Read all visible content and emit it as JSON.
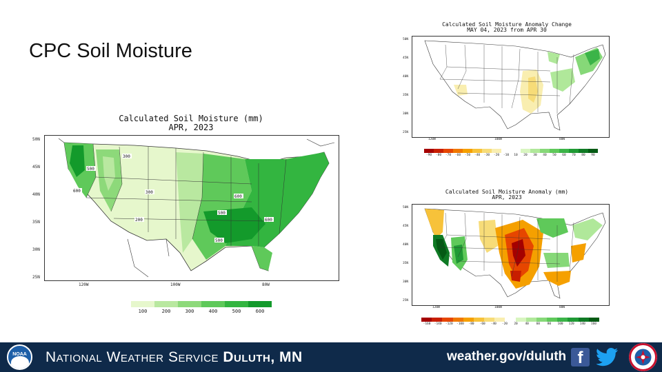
{
  "slide": {
    "title": "CPC Soil Moisture"
  },
  "maps": {
    "total": {
      "title_line1": "Calculated Soil Moisture (mm)",
      "title_line2": "APR, 2023",
      "lat_labels": [
        "50N",
        "45N",
        "40N",
        "35N",
        "30N",
        "25N"
      ],
      "lon_labels": [
        "120W",
        "100W",
        "80W"
      ],
      "legend_labels": [
        "100",
        "200",
        "300",
        "400",
        "500",
        "600"
      ],
      "legend_colors": [
        "#e6f7cc",
        "#b9e8a0",
        "#8dd97a",
        "#5fc95a",
        "#33b540",
        "#139a2b"
      ],
      "contour_labels": [
        "600",
        "300",
        "500",
        "300",
        "200",
        "500",
        "500",
        "600",
        "600"
      ]
    },
    "change": {
      "title_line1": "Calculated Soil Moisture Anomaly Change",
      "title_line2": "MAY 04, 2023 from APR 30",
      "lat_labels": [
        "50N",
        "45N",
        "40N",
        "35N",
        "30N",
        "25N"
      ],
      "lon_labels": [
        "120W",
        "100W",
        "80W"
      ],
      "legend_labels": [
        "-90",
        "-80",
        "-70",
        "-60",
        "-50",
        "-40",
        "-30",
        "-20",
        "-10",
        "10",
        "20",
        "30",
        "40",
        "50",
        "60",
        "70",
        "80",
        "90"
      ],
      "legend_colors": [
        "#a50000",
        "#c81e00",
        "#e64600",
        "#f07800",
        "#f5a000",
        "#f7c23a",
        "#f7dc78",
        "#f9eeb0",
        "#ffffff",
        "#ffffff",
        "#d8f5c0",
        "#b0e89a",
        "#86d878",
        "#5fc95a",
        "#3bb448",
        "#1f9a34",
        "#0f7a24",
        "#045a14"
      ]
    },
    "anomaly": {
      "title_line1": "Calculated Soil Moisture Anomaly (mm)",
      "title_line2": "APR, 2023",
      "lat_labels": [
        "50N",
        "45N",
        "40N",
        "35N",
        "30N",
        "25N"
      ],
      "lon_labels": [
        "120W",
        "100W",
        "80W"
      ],
      "legend_labels": [
        "-160",
        "-140",
        "-120",
        "-100",
        "-80",
        "-60",
        "-40",
        "-20",
        "20",
        "40",
        "60",
        "80",
        "100",
        "120",
        "140",
        "160"
      ],
      "legend_colors": [
        "#a50000",
        "#c81e00",
        "#e64600",
        "#f07800",
        "#f5a000",
        "#f7c23a",
        "#f7dc78",
        "#f9eeb0",
        "#ffffff",
        "#d8f5c0",
        "#b0e89a",
        "#86d878",
        "#5fc95a",
        "#3bb448",
        "#1f9a34",
        "#0f7a24",
        "#045a14"
      ]
    }
  },
  "footer": {
    "org_name": "National Weather Service",
    "office": "Duluth, MN",
    "url": "weather.gov/duluth",
    "noaa_logo_text": "NOAA",
    "facebook_glyph": "f"
  },
  "icons": [
    "noaa-logo-icon",
    "facebook-icon",
    "twitter-icon",
    "nws-logo-icon"
  ],
  "colors": {
    "footer_bg": "#0f2a4a",
    "facebook": "#3b5998",
    "twitter": "#1da1f2"
  }
}
